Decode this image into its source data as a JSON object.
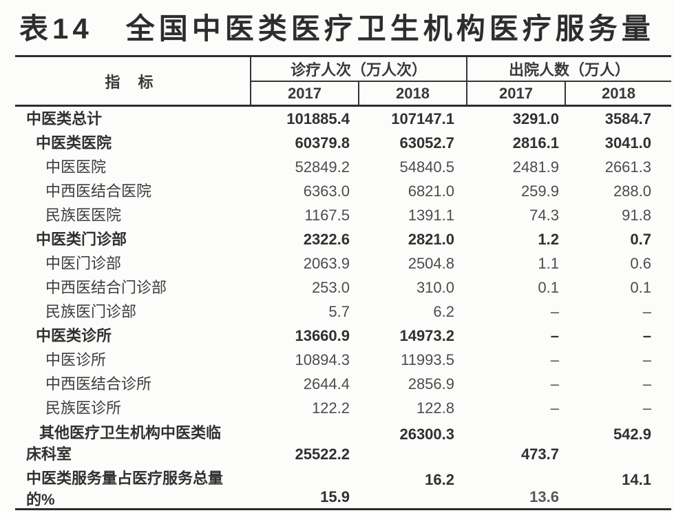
{
  "title": "表14　全国中医类医疗卫生机构医疗服务量",
  "table": {
    "indicator_header": "指 标",
    "col_groups": [
      {
        "label": "诊疗人次（万人次）",
        "years": [
          "2017",
          "2018"
        ]
      },
      {
        "label": "出院人数（万人）",
        "years": [
          "2017",
          "2018"
        ]
      }
    ],
    "rows": [
      {
        "label": "中医类总计",
        "values": [
          "101885.4",
          "107147.1",
          "3291.0",
          "3584.7"
        ]
      },
      {
        "label": "中医类医院",
        "values": [
          "60379.8",
          "63052.7",
          "2816.1",
          "3041.0"
        ]
      },
      {
        "label": "中医医院",
        "values": [
          "52849.2",
          "54840.5",
          "2481.9",
          "2661.3"
        ]
      },
      {
        "label": "中西医结合医院",
        "values": [
          "6363.0",
          "6821.0",
          "259.9",
          "288.0"
        ]
      },
      {
        "label": "民族医医院",
        "values": [
          "1167.5",
          "1391.1",
          "74.3",
          "91.8"
        ]
      },
      {
        "label": "中医类门诊部",
        "values": [
          "2322.6",
          "2821.0",
          "1.2",
          "0.7"
        ]
      },
      {
        "label": "中医门诊部",
        "values": [
          "2063.9",
          "2504.8",
          "1.1",
          "0.6"
        ]
      },
      {
        "label": "中西医结合门诊部",
        "values": [
          "253.0",
          "310.0",
          "0.1",
          "0.1"
        ]
      },
      {
        "label": "民族医门诊部",
        "values": [
          "5.7",
          "6.2",
          "–",
          "–"
        ]
      },
      {
        "label": "中医类诊所",
        "values": [
          "13660.9",
          "14973.2",
          "–",
          "–"
        ]
      },
      {
        "label": "中医诊所",
        "values": [
          "10894.3",
          "11993.5",
          "–",
          "–"
        ]
      },
      {
        "label": "中西医结合诊所",
        "values": [
          "2644.4",
          "2856.9",
          "–",
          "–"
        ]
      },
      {
        "label": "民族医诊所",
        "values": [
          "122.2",
          "122.8",
          "–",
          "–"
        ]
      },
      {
        "label_lines": [
          "其他医疗卫生机构中医类临",
          "床科室"
        ],
        "values": [
          "25522.2",
          "26300.3",
          "473.7",
          "542.9"
        ]
      },
      {
        "label_lines": [
          "中医类服务量占医疗服务总量",
          "的%"
        ],
        "values": [
          "15.9",
          "16.2",
          "13.6",
          "14.1"
        ]
      }
    ]
  }
}
